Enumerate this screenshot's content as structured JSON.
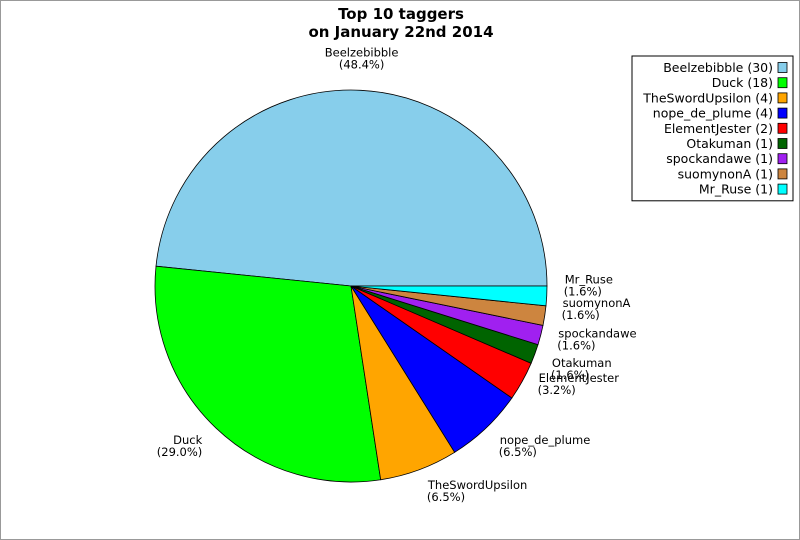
{
  "chart_data": {
    "type": "pie",
    "title": [
      "Top 10 taggers",
      "on January 22nd 2014"
    ],
    "legend_position": "top-right",
    "slices": [
      {
        "label": "Beelzebibble",
        "value": 30,
        "percent": "(48.4%)",
        "legend": "Beelzebibble (30)",
        "color": "#87ceeb"
      },
      {
        "label": "Duck",
        "value": 18,
        "percent": "(29.0%)",
        "legend": "Duck (18)",
        "color": "#00ff00"
      },
      {
        "label": "TheSwordUpsilon",
        "value": 4,
        "percent": "(6.5%)",
        "legend": "TheSwordUpsilon (4)",
        "color": "#ffa500"
      },
      {
        "label": "nope_de_plume",
        "value": 4,
        "percent": "(6.5%)",
        "legend": "nope_de_plume (4)",
        "color": "#0000ff"
      },
      {
        "label": "ElementJester",
        "value": 2,
        "percent": "(3.2%)",
        "legend": "ElementJester (2)",
        "color": "#ff0000"
      },
      {
        "label": "Otakuman",
        "value": 1,
        "percent": "(1.6%)",
        "legend": "Otakuman (1)",
        "color": "#006400"
      },
      {
        "label": "spockandawe",
        "value": 1,
        "percent": "(1.6%)",
        "legend": "spockandawe (1)",
        "color": "#a020f0"
      },
      {
        "label": "suomynonA",
        "value": 1,
        "percent": "(1.6%)",
        "legend": "suomynonA (1)",
        "color": "#cd853f"
      },
      {
        "label": "Mr_Ruse",
        "value": 1,
        "percent": "(1.6%)",
        "legend": "Mr_Ruse (1)",
        "color": "#00ffff"
      }
    ]
  }
}
